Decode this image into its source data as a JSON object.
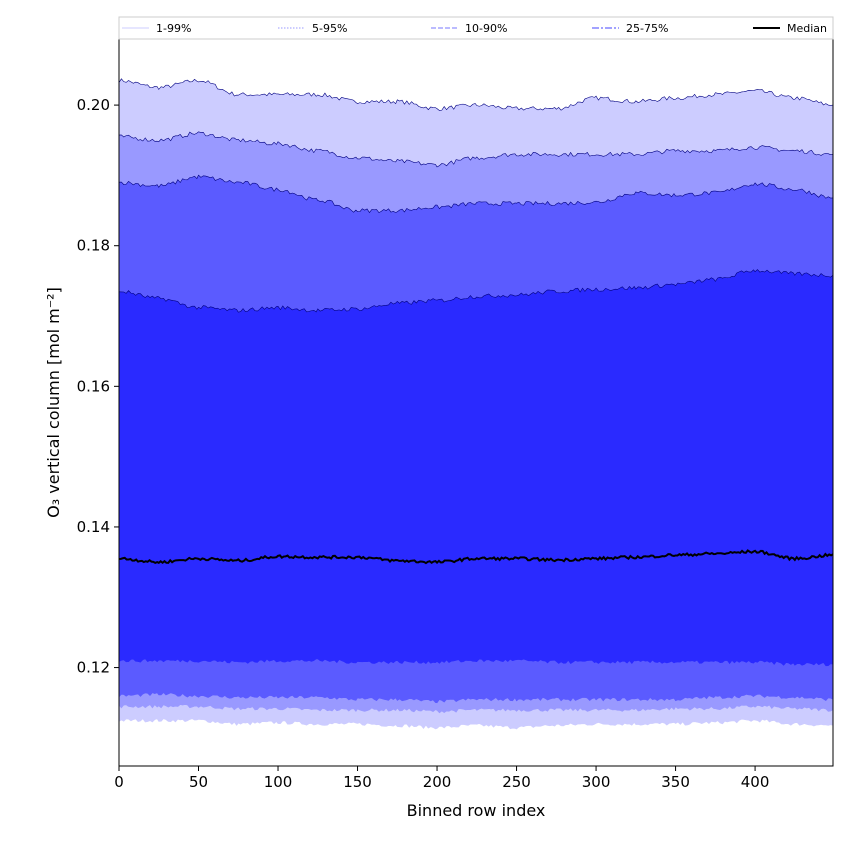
{
  "chart_data": {
    "type": "area",
    "title": "",
    "xlabel": "Binned row index",
    "ylabel": "O₃ vertical column [mol m⁻²]",
    "xlim": [
      0,
      449
    ],
    "ylim": [
      0.106,
      0.2094
    ],
    "xticks": [
      0,
      50,
      100,
      150,
      200,
      250,
      300,
      350,
      400
    ],
    "xtick_labels": [
      "0",
      "50",
      "100",
      "150",
      "200",
      "250",
      "300",
      "350",
      "400"
    ],
    "yticks": [
      0.12,
      0.14,
      0.16,
      0.18,
      0.2
    ],
    "ytick_labels": [
      "0.12",
      "0.14",
      "0.16",
      "0.18",
      "0.20"
    ],
    "grid": false,
    "legend_position": "top",
    "legend": [
      {
        "label": "1-99%",
        "color": "#ccccff",
        "style": "solid"
      },
      {
        "label": "5-95%",
        "color": "#9999ff",
        "style": "dotted"
      },
      {
        "label": "10-90%",
        "color": "#7777ff",
        "style": "dashed"
      },
      {
        "label": "25-75%",
        "color": "#4444ff",
        "style": "dashdot"
      },
      {
        "label": "Median",
        "color": "#000000",
        "style": "solid"
      }
    ],
    "x": [
      0,
      25,
      50,
      75,
      100,
      125,
      150,
      175,
      200,
      225,
      250,
      275,
      300,
      325,
      350,
      375,
      400,
      425,
      449
    ],
    "bands": [
      {
        "name": "1-99%",
        "fill": "#ccccff",
        "upper": [
          0.2035,
          0.2025,
          0.2035,
          0.2015,
          0.2015,
          0.2015,
          0.2005,
          0.2005,
          0.1995,
          0.2,
          0.1995,
          0.1995,
          0.201,
          0.2005,
          0.201,
          0.2015,
          0.202,
          0.201,
          0.2
        ],
        "lower": [
          0.1125,
          0.1125,
          0.1125,
          0.112,
          0.1122,
          0.112,
          0.112,
          0.1118,
          0.1115,
          0.1118,
          0.1115,
          0.1118,
          0.112,
          0.112,
          0.112,
          0.1122,
          0.1125,
          0.112,
          0.1118
        ]
      },
      {
        "name": "5-95%",
        "fill": "#9999ff",
        "upper": [
          0.1955,
          0.195,
          0.196,
          0.195,
          0.1945,
          0.1935,
          0.1925,
          0.192,
          0.1915,
          0.1925,
          0.193,
          0.193,
          0.193,
          0.193,
          0.1935,
          0.1935,
          0.194,
          0.1935,
          0.193
        ],
        "lower": [
          0.1145,
          0.1145,
          0.1145,
          0.1142,
          0.1142,
          0.114,
          0.114,
          0.114,
          0.1138,
          0.114,
          0.114,
          0.114,
          0.114,
          0.114,
          0.1142,
          0.1142,
          0.1145,
          0.1142,
          0.114
        ]
      },
      {
        "name": "10-90%",
        "fill": "#5b5bff",
        "upper": [
          0.189,
          0.1885,
          0.1898,
          0.189,
          0.188,
          0.1865,
          0.185,
          0.185,
          0.1855,
          0.186,
          0.186,
          0.186,
          0.1862,
          0.1875,
          0.1872,
          0.1875,
          0.1888,
          0.188,
          0.1868
        ],
        "lower": [
          0.116,
          0.1162,
          0.116,
          0.1158,
          0.1158,
          0.1158,
          0.1155,
          0.1155,
          0.1152,
          0.1155,
          0.1155,
          0.1155,
          0.1155,
          0.1155,
          0.1155,
          0.1158,
          0.116,
          0.1158,
          0.1155
        ]
      },
      {
        "name": "25-75%",
        "fill": "#2a2aff",
        "upper": [
          0.1735,
          0.1725,
          0.1712,
          0.1708,
          0.1712,
          0.1708,
          0.171,
          0.1718,
          0.1722,
          0.1728,
          0.173,
          0.1735,
          0.1738,
          0.174,
          0.1745,
          0.1752,
          0.1765,
          0.176,
          0.1758
        ],
        "lower": [
          0.121,
          0.121,
          0.121,
          0.1208,
          0.121,
          0.121,
          0.1208,
          0.1208,
          0.1208,
          0.121,
          0.121,
          0.1208,
          0.1208,
          0.1208,
          0.1208,
          0.1208,
          0.1208,
          0.1205,
          0.1205
        ]
      }
    ],
    "series": [
      {
        "name": "Median",
        "color": "#000000",
        "values": [
          0.1355,
          0.135,
          0.1355,
          0.1352,
          0.1358,
          0.1357,
          0.1357,
          0.1352,
          0.135,
          0.1355,
          0.1355,
          0.1353,
          0.1355,
          0.1357,
          0.136,
          0.1362,
          0.1365,
          0.1355,
          0.136
        ]
      }
    ]
  }
}
